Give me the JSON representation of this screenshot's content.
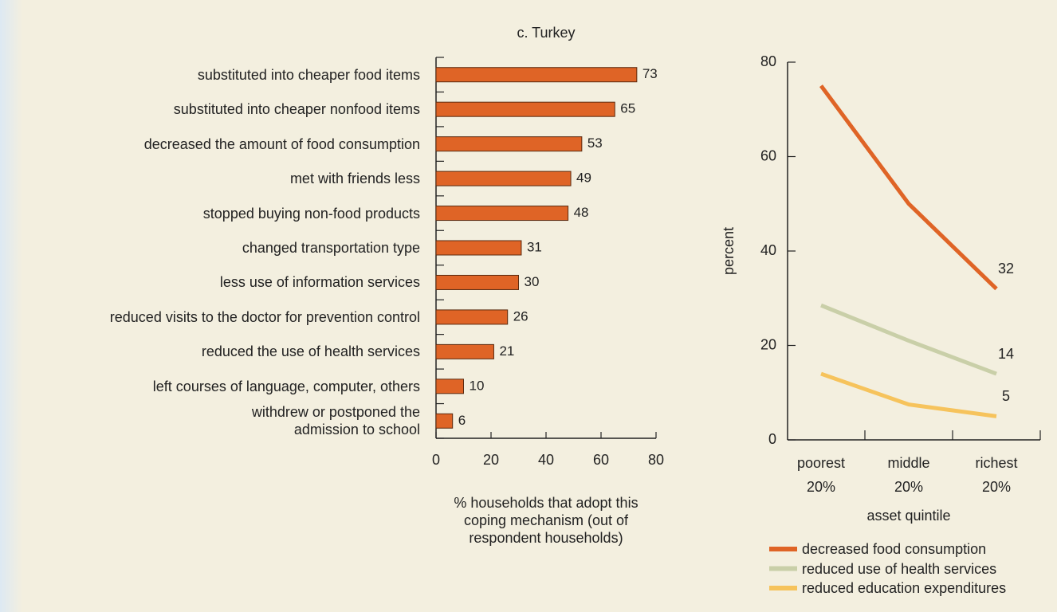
{
  "chart_data": [
    {
      "type": "hbar",
      "title": "c. Turkey",
      "categories": [
        "substituted into cheaper food items",
        "substituted into cheaper nonfood items",
        "decreased the amount of food consumption",
        "met with friends less",
        "stopped buying non-food products",
        "changed transportation type",
        "less use of information services",
        "reduced visits to the doctor for prevention control",
        "reduced the use of health services",
        "left courses of language, computer, others",
        "withdrew or postponed the\nadmission to school"
      ],
      "values": [
        73,
        65,
        53,
        49,
        48,
        31,
        30,
        26,
        21,
        10,
        6
      ],
      "color": "#df6426",
      "xlim": [
        0,
        80
      ],
      "xticks": [
        0,
        20,
        40,
        60,
        80
      ],
      "xlabel": "% households that adopt this\ncoping mechanism (out of\nrespondent households)"
    },
    {
      "type": "line",
      "categories": [
        "poorest\n20%",
        "middle\n20%",
        "richest\n20%"
      ],
      "series": [
        {
          "name": "decreased food consumption",
          "color": "#df6426",
          "values": [
            75,
            50,
            32
          ]
        },
        {
          "name": "reduced use of health services",
          "color": "#c9cfa8",
          "values": [
            28.5,
            21,
            14
          ]
        },
        {
          "name": "reduced education expenditures",
          "color": "#f6c35c",
          "values": [
            14,
            7.5,
            5
          ]
        }
      ],
      "ylim": [
        0,
        80
      ],
      "yticks": [
        0,
        20,
        40,
        60,
        80
      ],
      "ylabel": "percent",
      "xlabel": "asset quintile"
    }
  ]
}
